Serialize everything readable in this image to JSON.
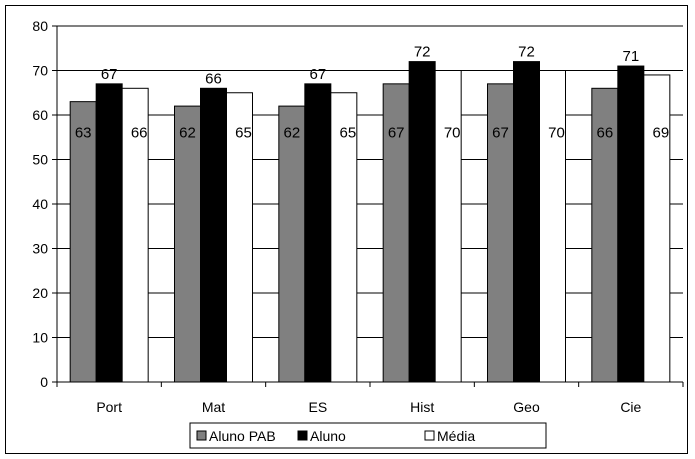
{
  "chart_data": {
    "type": "bar",
    "categories": [
      "Port",
      "Mat",
      "ES",
      "Hist",
      "Geo",
      "Cie"
    ],
    "series": [
      {
        "name": "Aluno PAB",
        "values": [
          63,
          62,
          62,
          67,
          67,
          66
        ],
        "color": "#808080"
      },
      {
        "name": "Aluno",
        "values": [
          67,
          66,
          67,
          72,
          72,
          71
        ],
        "color": "#000000"
      },
      {
        "name": "Média",
        "values": [
          66,
          65,
          65,
          70,
          70,
          69
        ],
        "color": "#ffffff"
      }
    ],
    "ylim": [
      0,
      80
    ],
    "yticks": [
      0,
      10,
      20,
      30,
      40,
      50,
      60,
      70,
      80
    ],
    "grid": true,
    "legend_position": "bottom",
    "title": "",
    "xlabel": "",
    "ylabel": ""
  }
}
